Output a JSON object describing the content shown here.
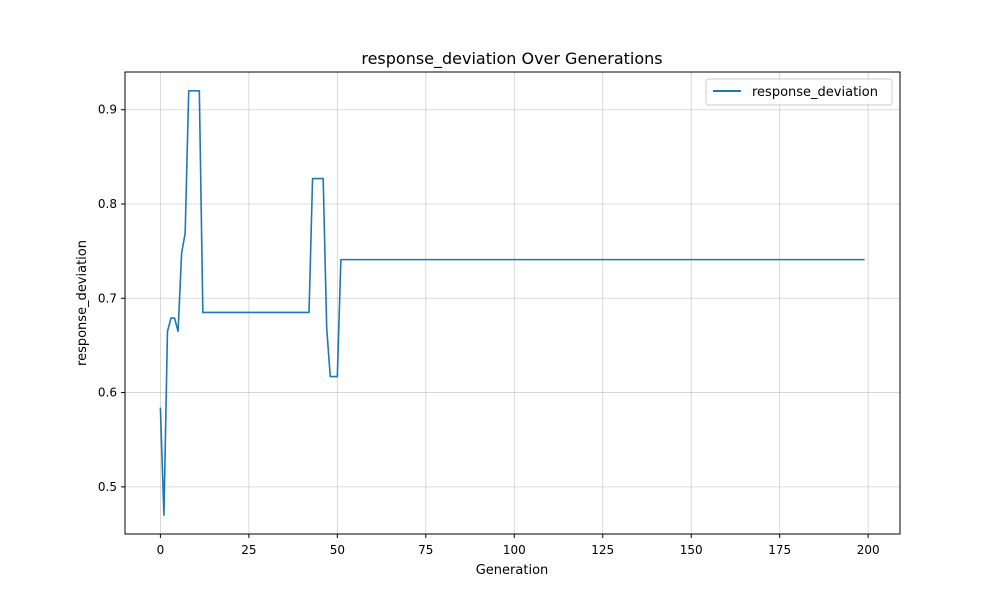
{
  "chart_data": {
    "type": "line",
    "title": "response_deviation Over Generations",
    "xlabel": "Generation",
    "ylabel": "response_deviation",
    "xlim": [
      -10,
      209
    ],
    "ylim": [
      0.45,
      0.94
    ],
    "xticks": [
      0,
      25,
      50,
      75,
      100,
      125,
      150,
      175,
      200
    ],
    "yticks": [
      0.5,
      0.6,
      0.7,
      0.8,
      0.9
    ],
    "grid": true,
    "legend_position": "top-right",
    "line_color": "#1f77b4",
    "series": [
      {
        "name": "response_deviation",
        "points": [
          [
            0,
            0.584
          ],
          [
            1,
            0.47
          ],
          [
            2,
            0.665
          ],
          [
            3,
            0.679
          ],
          [
            4,
            0.679
          ],
          [
            5,
            0.665
          ],
          [
            6,
            0.748
          ],
          [
            7,
            0.769
          ],
          [
            8,
            0.92
          ],
          [
            9,
            0.92
          ],
          [
            10,
            0.92
          ],
          [
            11,
            0.92
          ],
          [
            12,
            0.685
          ],
          [
            20,
            0.685
          ],
          [
            30,
            0.685
          ],
          [
            42,
            0.685
          ],
          [
            43,
            0.827
          ],
          [
            44,
            0.827
          ],
          [
            45,
            0.827
          ],
          [
            46,
            0.827
          ],
          [
            47,
            0.668
          ],
          [
            48,
            0.617
          ],
          [
            49,
            0.617
          ],
          [
            50,
            0.617
          ],
          [
            51,
            0.741
          ],
          [
            75,
            0.741
          ],
          [
            100,
            0.741
          ],
          [
            125,
            0.741
          ],
          [
            150,
            0.741
          ],
          [
            175,
            0.741
          ],
          [
            199,
            0.741
          ]
        ]
      }
    ]
  }
}
